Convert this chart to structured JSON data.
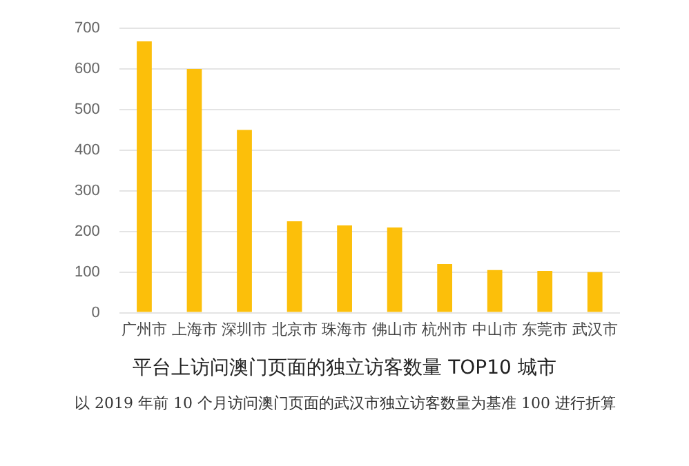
{
  "chart_data": {
    "type": "bar",
    "title": "平台上访问澳门页面的独立访客数量 TOP10 城市",
    "categories": [
      "广州市",
      "上海市",
      "深圳市",
      "北京市",
      "珠海市",
      "佛山市",
      "杭州市",
      "中山市",
      "东莞市",
      "武汉市"
    ],
    "values": [
      668,
      600,
      450,
      225,
      215,
      210,
      120,
      105,
      103,
      100
    ],
    "color": "#fcbf0a",
    "ylim": [
      0,
      700
    ],
    "yticks": [
      0,
      100,
      200,
      300,
      400,
      500,
      600,
      700
    ],
    "grid": "y",
    "annotations": [
      "以 2019 年前 10 个月访问澳门页面的武汉市独立访客数量为基准 100 进行折算"
    ]
  }
}
